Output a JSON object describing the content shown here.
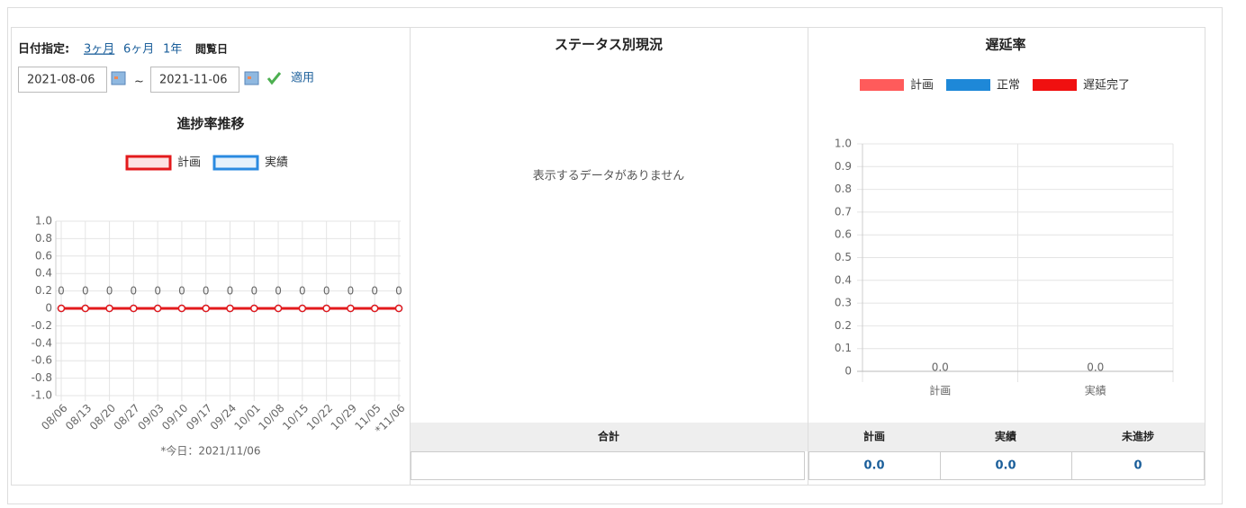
{
  "filter": {
    "label": "日付指定:",
    "options": [
      "3ヶ月",
      "6ヶ月",
      "1年"
    ],
    "browse": "閲覧日",
    "start": "2021-08-06",
    "separator": "~",
    "end": "2021-11-06",
    "apply": "適用"
  },
  "chart_data": [
    {
      "type": "line",
      "title": "進捗率推移",
      "categories": [
        "08/06",
        "08/13",
        "08/20",
        "08/27",
        "09/03",
        "09/10",
        "09/17",
        "09/24",
        "10/01",
        "10/08",
        "10/15",
        "10/22",
        "10/29",
        "11/05",
        "*11/06"
      ],
      "series": [
        {
          "name": "計画",
          "color": "#e31a1c",
          "values": [
            0,
            0,
            0,
            0,
            0,
            0,
            0,
            0,
            0,
            0,
            0,
            0,
            0,
            0,
            0
          ]
        },
        {
          "name": "実績",
          "color": "#2a8ae0",
          "values": [
            0,
            0,
            0,
            0,
            0,
            0,
            0,
            0,
            0,
            0,
            0,
            0,
            0,
            0,
            0
          ]
        }
      ],
      "ylim": [
        -1,
        1
      ],
      "yticks": [
        {
          "value": -1,
          "label": "-1.0"
        },
        -0.8,
        -0.6,
        -0.4,
        -0.2,
        0,
        0.2,
        0.4,
        0.6,
        0.8,
        {
          "value": 1,
          "label": "1.0"
        }
      ],
      "grid": true,
      "note": "*今日：2021/11/06"
    },
    {
      "type": "bar",
      "title": "遅延率",
      "categories": [
        "計画",
        "実績"
      ],
      "series": [
        {
          "name": "計画",
          "color": "#ff5b5b",
          "values": [
            0,
            0
          ],
          "value_labels": [
            "0.0",
            "0.0"
          ]
        },
        {
          "name": "正常",
          "color": "#1e88d8",
          "values": [
            0,
            0
          ]
        },
        {
          "name": "遅延完了",
          "color": "#f01010",
          "values": [
            0,
            0
          ]
        }
      ],
      "ylim": [
        0,
        1
      ],
      "yticks": [
        0,
        0.1,
        0.2,
        0.3,
        0.4,
        0.5,
        0.6,
        0.7,
        0.8,
        0.9,
        {
          "value": 1,
          "label": "1.0"
        }
      ],
      "grid": true
    }
  ],
  "status": {
    "title": "ステータス別現況",
    "empty": "表示するデータがありません",
    "total_header": "合計"
  },
  "summary": {
    "headers": [
      "計画",
      "実績",
      "未進捗"
    ],
    "values": [
      "0.0",
      "0.0",
      "0"
    ]
  }
}
